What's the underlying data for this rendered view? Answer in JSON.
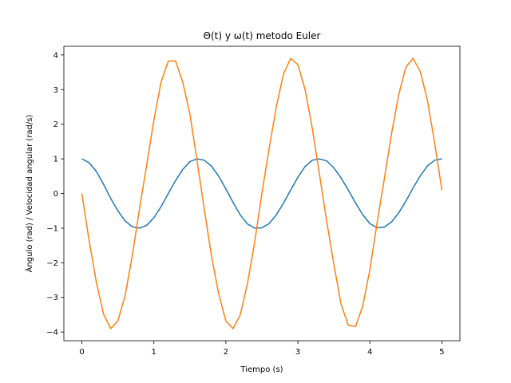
{
  "chart_data": {
    "type": "line",
    "title": "Θ(t) y ω(t) metodo Euler",
    "xlabel": "Tiempo (s)",
    "ylabel": "Ángulo (rad) / Velocidad angular (rad/s)",
    "xlim": [
      -0.25,
      5.25
    ],
    "ylim": [
      -4.25,
      4.25
    ],
    "xticks": [
      0,
      1,
      2,
      3,
      4,
      5
    ],
    "yticks": [
      -4,
      -3,
      -2,
      -1,
      0,
      1,
      2,
      3,
      4
    ],
    "xtick_labels": [
      "0",
      "1",
      "2",
      "3",
      "4",
      "5"
    ],
    "ytick_labels": [
      "−4",
      "−3",
      "−2",
      "−1",
      "0",
      "1",
      "2",
      "3",
      "4"
    ],
    "grid": false,
    "series": [
      {
        "color": "#1f77b4",
        "x": [
          0.0,
          0.1,
          0.2,
          0.3,
          0.4,
          0.5,
          0.6,
          0.7,
          0.8,
          0.9,
          1.0,
          1.1,
          1.2,
          1.3,
          1.4,
          1.5,
          1.6,
          1.7,
          1.8,
          1.9,
          2.0,
          2.1,
          2.2,
          2.3,
          2.4,
          2.5,
          2.6,
          2.7,
          2.8,
          2.9,
          3.0,
          3.1,
          3.2,
          3.3,
          3.4,
          3.5,
          3.6,
          3.7,
          3.8,
          3.9,
          4.0,
          4.1,
          4.2,
          4.3,
          4.4,
          4.5,
          4.6,
          4.7,
          4.8,
          4.9,
          5.0
        ],
        "y": [
          1.0,
          0.89,
          0.64,
          0.27,
          -0.14,
          -0.5,
          -0.79,
          -0.96,
          -1.0,
          -0.92,
          -0.7,
          -0.38,
          0.0,
          0.37,
          0.69,
          0.92,
          1.0,
          0.96,
          0.79,
          0.5,
          0.13,
          -0.26,
          -0.62,
          -0.88,
          -1.0,
          -0.99,
          -0.87,
          -0.62,
          -0.28,
          0.1,
          0.47,
          0.78,
          0.96,
          1.0,
          0.94,
          0.74,
          0.45,
          0.1,
          -0.27,
          -0.61,
          -0.87,
          -0.99,
          -0.97,
          -0.82,
          -0.56,
          -0.22,
          0.16,
          0.51,
          0.8,
          0.96,
          1.0
        ]
      },
      {
        "color": "#ff7f0e",
        "x": [
          0.0,
          0.1,
          0.2,
          0.3,
          0.4,
          0.5,
          0.6,
          0.7,
          0.8,
          0.9,
          1.0,
          1.1,
          1.2,
          1.3,
          1.4,
          1.5,
          1.6,
          1.7,
          1.8,
          1.9,
          2.0,
          2.1,
          2.2,
          2.3,
          2.4,
          2.5,
          2.6,
          2.7,
          2.8,
          2.9,
          3.0,
          3.1,
          3.2,
          3.3,
          3.4,
          3.5,
          3.6,
          3.7,
          3.8,
          3.9,
          4.0,
          4.1,
          4.2,
          4.3,
          4.4,
          4.5,
          4.6,
          4.7,
          4.8,
          4.9,
          5.0
        ],
        "y": [
          0.0,
          -1.35,
          -2.55,
          -3.48,
          -3.9,
          -3.68,
          -2.95,
          -1.8,
          -0.45,
          0.82,
          2.12,
          3.22,
          3.82,
          3.83,
          3.22,
          2.3,
          0.94,
          -0.45,
          -1.8,
          -2.9,
          -3.68,
          -3.9,
          -3.5,
          -2.6,
          -1.4,
          0.0,
          1.3,
          2.5,
          3.45,
          3.9,
          3.72,
          3.0,
          1.88,
          0.55,
          -0.8,
          -2.05,
          -3.2,
          -3.8,
          -3.84,
          -3.25,
          -2.2,
          -0.85,
          0.42,
          1.72,
          2.85,
          3.65,
          3.9,
          3.52,
          2.68,
          1.45,
          0.1
        ]
      }
    ]
  }
}
